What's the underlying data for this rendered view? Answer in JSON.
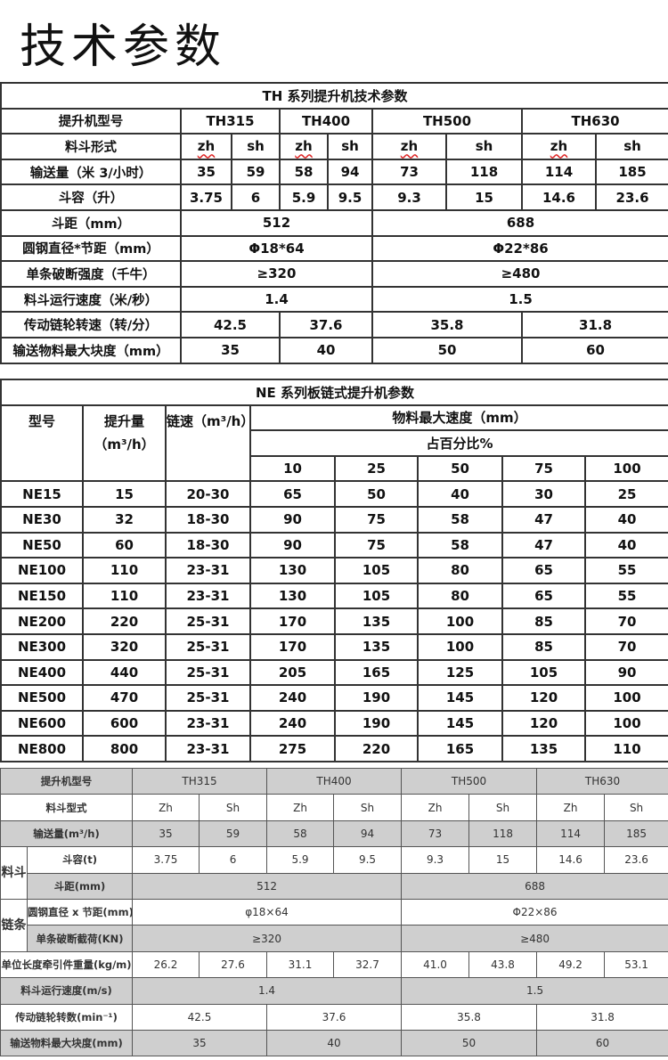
{
  "page_title": "技术参数",
  "th_table": {
    "title": "TH 系列提升机技术参数",
    "model_label": "提升机型号",
    "models": [
      "TH315",
      "TH400",
      "TH500",
      "TH630"
    ],
    "bucket_type_label": "料斗形式",
    "bucket_types": [
      "zh",
      "sh",
      "zh",
      "sh",
      "zh",
      "sh",
      "zh",
      "sh"
    ],
    "capacity_label": "输送量（米 3/小时）",
    "capacity": [
      "35",
      "59",
      "58",
      "94",
      "73",
      "118",
      "114",
      "185"
    ],
    "volume_label": "斗容（升）",
    "volume": [
      "3.75",
      "6",
      "5.9",
      "9.5",
      "9.3",
      "15",
      "14.6",
      "23.6"
    ],
    "pitch_label": "斗距（mm）",
    "pitch": [
      "512",
      "688"
    ],
    "chain_label": "圆钢直径*节距（mm）",
    "chain": [
      "Φ18*64",
      "Φ22*86"
    ],
    "strength_label": "单条破断强度（千牛）",
    "strength": [
      "≥320",
      "≥480"
    ],
    "speed_label": "料斗运行速度（米/秒）",
    "speed": [
      "1.4",
      "1.5"
    ],
    "rpm_label": "传动链轮转速（转/分）",
    "rpm": [
      "42.5",
      "37.6",
      "35.8",
      "31.8"
    ],
    "lump_label": "输送物料最大块度（mm）",
    "lump": [
      "35",
      "40",
      "50",
      "60"
    ]
  },
  "ne_table": {
    "title": "NE 系列板链式提升机参数",
    "headers": {
      "model": "型号",
      "capacity": "提升量（m³/h）",
      "chain_speed": "链速（m³/h）",
      "max_lump": "物料最大速度（mm）",
      "percent": "占百分比%"
    },
    "percents": [
      "10",
      "25",
      "50",
      "75",
      "100"
    ],
    "rows": [
      [
        "NE15",
        "15",
        "20-30",
        "65",
        "50",
        "40",
        "30",
        "25"
      ],
      [
        "NE30",
        "32",
        "18-30",
        "90",
        "75",
        "58",
        "47",
        "40"
      ],
      [
        "NE50",
        "60",
        "18-30",
        "90",
        "75",
        "58",
        "47",
        "40"
      ],
      [
        "NE100",
        "110",
        "23-31",
        "130",
        "105",
        "80",
        "65",
        "55"
      ],
      [
        "NE150",
        "110",
        "23-31",
        "130",
        "105",
        "80",
        "65",
        "55"
      ],
      [
        "NE200",
        "220",
        "25-31",
        "170",
        "135",
        "100",
        "85",
        "70"
      ],
      [
        "NE300",
        "320",
        "25-31",
        "170",
        "135",
        "100",
        "85",
        "70"
      ],
      [
        "NE400",
        "440",
        "25-31",
        "205",
        "165",
        "125",
        "105",
        "90"
      ],
      [
        "NE500",
        "470",
        "25-31",
        "240",
        "190",
        "145",
        "120",
        "100"
      ],
      [
        "NE600",
        "600",
        "23-31",
        "240",
        "190",
        "145",
        "120",
        "100"
      ],
      [
        "NE800",
        "800",
        "23-31",
        "275",
        "220",
        "165",
        "135",
        "110"
      ]
    ]
  },
  "th2_table": {
    "model_label": "提升机型号",
    "models": [
      "TH315",
      "TH400",
      "TH500",
      "TH630"
    ],
    "bucket_type_label": "料斗型式",
    "bucket_types": [
      "Zh",
      "Sh",
      "Zh",
      "Sh",
      "Zh",
      "Sh",
      "Zh",
      "Sh"
    ],
    "capacity_label": "输送量(m³/h)",
    "capacity": [
      "35",
      "59",
      "58",
      "94",
      "73",
      "118",
      "114",
      "185"
    ],
    "bucket_group": "料斗",
    "volume_label": "斗容(t)",
    "volume": [
      "3.75",
      "6",
      "5.9",
      "9.5",
      "9.3",
      "15",
      "14.6",
      "23.6"
    ],
    "pitch_label": "斗距(mm)",
    "pitch": [
      "512",
      "688"
    ],
    "chain_group": "链条",
    "chain_label": "圆钢直径 x 节距(mm)",
    "chain": [
      "φ18×64",
      "Φ22×86"
    ],
    "load_label": "单条破断截荷(KN)",
    "load": [
      "≥320",
      "≥480"
    ],
    "weight_label": "单位长度牵引件重量(kg/m)",
    "weight": [
      "26.2",
      "27.6",
      "31.1",
      "32.7",
      "41.0",
      "43.8",
      "49.2",
      "53.1"
    ],
    "speed_label": "料斗运行速度(m/s)",
    "speed": [
      "1.4",
      "1.5"
    ],
    "rpm_label": "传动链轮转数(min⁻¹)",
    "rpm": [
      "42.5",
      "37.6",
      "35.8",
      "31.8"
    ],
    "lump_label": "输送物料最大块度(mm)",
    "lump": [
      "35",
      "40",
      "50",
      "60"
    ]
  }
}
